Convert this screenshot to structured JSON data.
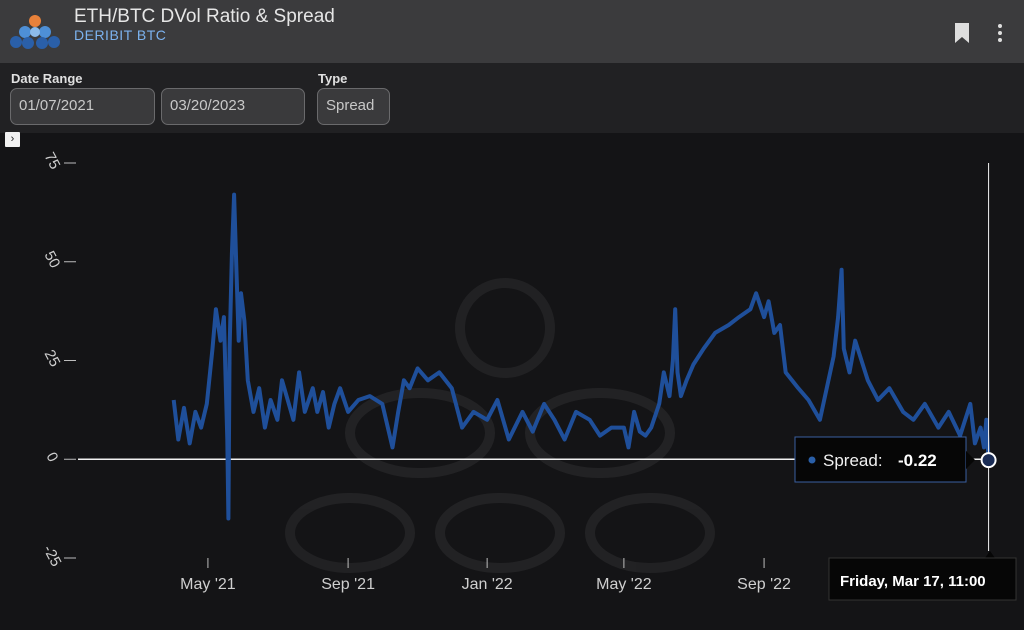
{
  "header": {
    "title": "ETH/BTC DVol Ratio & Spread",
    "subtitle": "DERIBIT BTC"
  },
  "controls": {
    "date_range_label": "Date Range",
    "start_date": "01/07/2021",
    "end_date": "03/20/2023",
    "type_label": "Type",
    "type_value": "Spread"
  },
  "tooltip": {
    "series_label": "Spread:",
    "value": "-0.22",
    "date_label": "Friday, Mar 17, 11:00"
  },
  "colors": {
    "series": "#1f4f9a",
    "background": "#141416",
    "header": "#3b3b3d",
    "accent": "#7cb2ef"
  },
  "chart_data": {
    "type": "line",
    "series": [
      {
        "name": "Spread",
        "x": [
          "2021-04-01",
          "2021-04-05",
          "2021-04-10",
          "2021-04-15",
          "2021-04-20",
          "2021-04-25",
          "2021-04-30",
          "2021-05-05",
          "2021-05-08",
          "2021-05-12",
          "2021-05-15",
          "2021-05-18",
          "2021-05-19",
          "2021-05-20",
          "2021-05-22",
          "2021-05-24",
          "2021-05-26",
          "2021-05-28",
          "2021-05-30",
          "2021-06-02",
          "2021-06-05",
          "2021-06-10",
          "2021-06-15",
          "2021-06-20",
          "2021-06-25",
          "2021-07-01",
          "2021-07-05",
          "2021-07-10",
          "2021-07-15",
          "2021-07-20",
          "2021-07-25",
          "2021-08-01",
          "2021-08-05",
          "2021-08-10",
          "2021-08-15",
          "2021-08-20",
          "2021-08-25",
          "2021-09-01",
          "2021-09-10",
          "2021-09-20",
          "2021-10-01",
          "2021-10-10",
          "2021-10-15",
          "2021-10-20",
          "2021-10-25",
          "2021-11-01",
          "2021-11-10",
          "2021-11-20",
          "2021-12-01",
          "2021-12-10",
          "2021-12-20",
          "2022-01-01",
          "2022-01-10",
          "2022-01-20",
          "2022-02-01",
          "2022-02-10",
          "2022-02-20",
          "2022-03-01",
          "2022-03-10",
          "2022-03-20",
          "2022-04-01",
          "2022-04-10",
          "2022-04-20",
          "2022-05-01",
          "2022-05-05",
          "2022-05-10",
          "2022-05-15",
          "2022-05-20",
          "2022-05-25",
          "2022-06-01",
          "2022-06-05",
          "2022-06-10",
          "2022-06-13",
          "2022-06-15",
          "2022-06-17",
          "2022-06-20",
          "2022-06-25",
          "2022-07-01",
          "2022-07-10",
          "2022-07-20",
          "2022-08-01",
          "2022-08-10",
          "2022-08-20",
          "2022-08-25",
          "2022-09-01",
          "2022-09-05",
          "2022-09-10",
          "2022-09-15",
          "2022-09-20",
          "2022-10-01",
          "2022-10-10",
          "2022-10-20",
          "2022-11-01",
          "2022-11-05",
          "2022-11-08",
          "2022-11-10",
          "2022-11-15",
          "2022-11-20",
          "2022-12-01",
          "2022-12-10",
          "2022-12-20",
          "2023-01-01",
          "2023-01-10",
          "2023-01-20",
          "2023-02-01",
          "2023-02-10",
          "2023-02-20",
          "2023-03-01",
          "2023-03-05",
          "2023-03-10",
          "2023-03-13",
          "2023-03-15",
          "2023-03-17"
        ],
        "values": [
          15,
          5,
          13,
          4,
          12,
          8,
          14,
          28,
          38,
          30,
          36,
          5,
          -15,
          28,
          52,
          67,
          48,
          30,
          42,
          35,
          20,
          12,
          18,
          8,
          15,
          10,
          20,
          15,
          10,
          22,
          12,
          18,
          12,
          17,
          8,
          14,
          18,
          12,
          15,
          16,
          14,
          3,
          12,
          20,
          18,
          23,
          20,
          22,
          18,
          8,
          12,
          10,
          15,
          5,
          12,
          7,
          14,
          10,
          5,
          12,
          10,
          6,
          8,
          8,
          3,
          12,
          7,
          6,
          8,
          14,
          22,
          16,
          25,
          38,
          22,
          16,
          20,
          24,
          28,
          32,
          34,
          36,
          38,
          42,
          36,
          40,
          32,
          34,
          22,
          18,
          15,
          10,
          26,
          36,
          48,
          28,
          22,
          30,
          20,
          15,
          18,
          12,
          10,
          14,
          8,
          12,
          6,
          14,
          4,
          8,
          3,
          10,
          -0.22
        ]
      }
    ],
    "x_ticks": [
      "May '21",
      "Sep '21",
      "Jan '22",
      "May '22",
      "Sep '22"
    ],
    "x_tick_dates": [
      "2021-05-01",
      "2021-09-01",
      "2022-01-01",
      "2022-05-01",
      "2022-09-01"
    ],
    "y_ticks": [
      -25,
      0,
      25,
      50,
      75
    ],
    "ylim": [
      -25,
      75
    ],
    "xlim": [
      "2021-01-07",
      "2023-03-20"
    ],
    "grid": false,
    "title": "",
    "xlabel": "",
    "ylabel": ""
  }
}
